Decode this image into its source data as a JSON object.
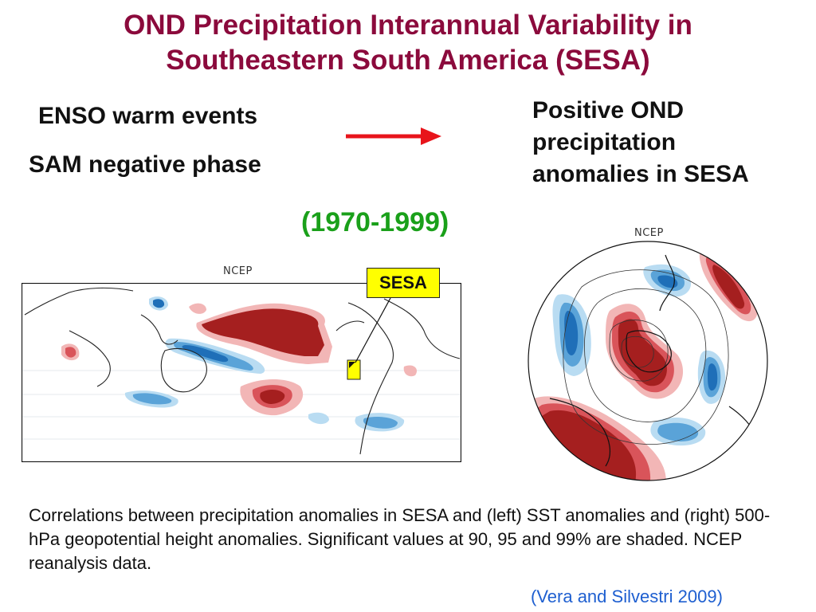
{
  "title": {
    "line1": "OND Precipitation Interannual Variability in",
    "line2": "Southeastern South America (SESA)"
  },
  "drivers": {
    "enso": "ENSO warm events",
    "sam": "SAM negative phase"
  },
  "result": {
    "line1": "Positive OND",
    "line2": "precipitation",
    "line3": "anomalies in SESA"
  },
  "period": "(1970-1999)",
  "maps": {
    "left_source": "NCEP",
    "right_source": "NCEP",
    "sesa_label": "SESA"
  },
  "caption": "Correlations between precipitation anomalies in SESA and (left) SST anomalies and (right) 500-hPa geopotential height anomalies. Significant values at 90, 95 and 99% are shaded. NCEP reanalysis data.",
  "citation": "(Vera and Silvestri 2009)",
  "colors": {
    "title": "#8b0a3c",
    "arrow": "#e8141b",
    "period": "#1aa01a",
    "citation": "#1e5fd0",
    "positive_dark": "#a51f1f",
    "positive_mid": "#d9545a",
    "positive_light": "#f2b6b6",
    "negative_dark": "#1f6fb8",
    "negative_mid": "#5aa3d8",
    "negative_light": "#b9dcf2",
    "sesa_box": "#ffff00"
  },
  "icons": {
    "arrow": "right-arrow-icon"
  }
}
